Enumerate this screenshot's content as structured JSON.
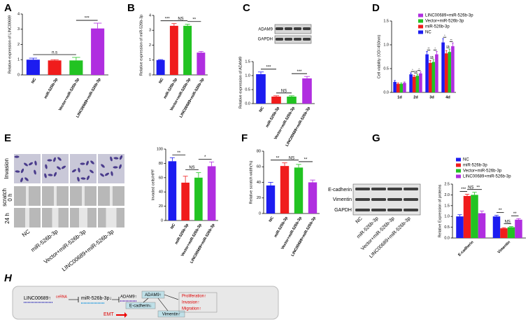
{
  "chart_data": [
    {
      "type": "bar",
      "panel": "A",
      "ylabel": "Relative expression of LINC00689",
      "categories": [
        "NC",
        "miR-526b-3p",
        "Vector+miR-526b-3p",
        "LINC00689+miR-526b-3p"
      ],
      "values": [
        1.0,
        0.95,
        0.95,
        3.05
      ],
      "errors": [
        0.1,
        0.05,
        0.2,
        0.35
      ],
      "colors": [
        "#1c1cf0",
        "#f01c1c",
        "#22c322",
        "#b02ee0"
      ],
      "ylim": [
        0,
        4
      ],
      "yticks": [
        0,
        1,
        2,
        3,
        4
      ],
      "annotations": [
        "n.s",
        "***"
      ]
    },
    {
      "type": "bar",
      "panel": "B",
      "ylabel": "Relative expression of miR-526b-3p",
      "categories": [
        "NC",
        "miR-526b-3p",
        "Vector+miR-526b-3p",
        "LINC00689+miR-526b-3p"
      ],
      "values": [
        1.0,
        3.3,
        3.3,
        1.5
      ],
      "errors": [
        0.03,
        0.15,
        0.1,
        0.08
      ],
      "colors": [
        "#1c1cf0",
        "#f01c1c",
        "#22c322",
        "#b02ee0"
      ],
      "ylim": [
        0,
        4
      ],
      "yticks": [
        0,
        1,
        2,
        3,
        4
      ],
      "annotations": [
        "***",
        "NS",
        "**"
      ]
    },
    {
      "type": "bar",
      "panel": "C",
      "ylabel": "Relative expression of ADAM9",
      "categories": [
        "NC",
        "miR-526b-3p",
        "Vector+miR-526b-3p",
        "LINC00689+miR-526b-3p"
      ],
      "values": [
        1.05,
        0.25,
        0.25,
        0.9
      ],
      "errors": [
        0.08,
        0.03,
        0.03,
        0.07
      ],
      "colors": [
        "#1c1cf0",
        "#f01c1c",
        "#22c322",
        "#b02ee0"
      ],
      "ylim": [
        0,
        1.5
      ],
      "yticks": [
        {
          "value": 0,
          "label": "0.0"
        },
        0.5,
        {
          "value": 1,
          "label": "1.0"
        },
        1.5
      ],
      "annotations": [
        "***",
        "NS",
        "***"
      ]
    },
    {
      "type": "bar",
      "panel": "D",
      "ylabel": "Cell viability (OD=450nm)",
      "categories": [
        "1d",
        "2d",
        "3d",
        "4d"
      ],
      "series": [
        {
          "name": "NC",
          "color": "#1c1cf0",
          "values": [
            0.22,
            0.38,
            0.8,
            1.05
          ],
          "errors": [
            0.03,
            0.03,
            0.06,
            0.08
          ]
        },
        {
          "name": "miR-526b-3p",
          "color": "#f01c1c",
          "values": [
            0.18,
            0.33,
            0.62,
            0.82
          ],
          "errors": [
            0.02,
            0.03,
            0.05,
            0.06
          ]
        },
        {
          "name": "Vector+miR-526b-3p",
          "color": "#22c322",
          "values": [
            0.18,
            0.35,
            0.64,
            0.85
          ],
          "errors": [
            0.02,
            0.03,
            0.05,
            0.06
          ]
        },
        {
          "name": "LINC00689+miR-526b-3p",
          "color": "#b02ee0",
          "values": [
            0.2,
            0.4,
            0.8,
            0.97
          ],
          "errors": [
            0.02,
            0.03,
            0.06,
            0.07
          ]
        }
      ],
      "ylim": [
        0,
        1.5
      ],
      "yticks": [
        {
          "value": 0,
          "label": "0.0"
        },
        0.5,
        {
          "value": 1,
          "label": "1.0"
        },
        1.5
      ],
      "annotations": [
        "*",
        "ns",
        "*",
        "**",
        "ns",
        "*",
        "*",
        "ns",
        "**"
      ]
    },
    {
      "type": "bar",
      "panel": "E",
      "ylabel": "Invaded cells/HPF",
      "categories": [
        "NC",
        "miR-526b-3p",
        "Vector+miR-526b-3p",
        "LINC00689+miR-526b-3p"
      ],
      "values": [
        83,
        53,
        60,
        76
      ],
      "errors": [
        5,
        9,
        7,
        6
      ],
      "colors": [
        "#1c1cf0",
        "#f01c1c",
        "#22c322",
        "#b02ee0"
      ],
      "ylim": [
        0,
        100
      ],
      "yticks": [
        0,
        20,
        40,
        60,
        80,
        100
      ],
      "annotations": [
        "**",
        "NS",
        "*"
      ]
    },
    {
      "type": "bar",
      "panel": "F",
      "ylabel": "Relative scratch width(%)",
      "categories": [
        "NC",
        "miR-526b-3p",
        "Vector+miR-526b-3p",
        "LINC00689+miR-526b-3p"
      ],
      "values": [
        36,
        61,
        59,
        40
      ],
      "errors": [
        4,
        4,
        4,
        3
      ],
      "colors": [
        "#1c1cf0",
        "#f01c1c",
        "#22c322",
        "#b02ee0"
      ],
      "ylim": [
        0,
        80
      ],
      "yticks": [
        0,
        20,
        40,
        60,
        80
      ],
      "annotations": [
        "**",
        "NS",
        "**"
      ]
    },
    {
      "type": "bar",
      "panel": "G",
      "ylabel": "Relative Expression of proteins",
      "categories": [
        "E-cadherin",
        "Vimentin"
      ],
      "series": [
        {
          "name": "NC",
          "color": "#1c1cf0",
          "values": [
            1.0,
            1.0
          ],
          "errors": [
            0.08,
            0.05
          ]
        },
        {
          "name": "miR-526b-3p",
          "color": "#f01c1c",
          "values": [
            1.95,
            0.45
          ],
          "errors": [
            0.08,
            0.03
          ]
        },
        {
          "name": "Vector+miR-526b-3p",
          "color": "#22c322",
          "values": [
            2.0,
            0.5
          ],
          "errors": [
            0.12,
            0.03
          ]
        },
        {
          "name": "LINC00689+miR-526b-3p",
          "color": "#b02ee0",
          "values": [
            1.15,
            0.85
          ],
          "errors": [
            0.1,
            0.05
          ]
        }
      ],
      "ylim": [
        0,
        2.5
      ],
      "yticks": [
        {
          "value": 0,
          "label": "0.0"
        },
        0.5,
        {
          "value": 1,
          "label": "1.0"
        },
        1.5,
        {
          "value": 2,
          "label": "2.0"
        },
        2.5
      ],
      "annotations": [
        "***",
        "NS",
        "**",
        "**",
        "NS",
        "**"
      ]
    }
  ],
  "blot_c": {
    "labels": [
      "ADAM9",
      "GAPDH"
    ]
  },
  "images_e": {
    "row_labels": [
      "Invasion",
      "scratch",
      "0 h",
      "24 h"
    ],
    "columns": [
      "NC",
      "miR-526b-3p",
      "Vector+miR-526b-3p",
      "LINC00689+miR-526b-3p"
    ]
  },
  "blot_g": {
    "labels": [
      "E-cadherin",
      "Vimentin",
      "GAPDH"
    ],
    "columns": [
      "NC",
      "miR-526b-3p",
      "Vector+miR-526b-3p",
      "LINC00689+miR-526b-3p"
    ]
  },
  "diagram_h": {
    "panel": "H",
    "lnc": "LINC00689↑",
    "cerna": "ceRNA",
    "mir": "miR-526b-3p↓",
    "adam": "ADAM9↑",
    "adam_box": "ADAM9↑",
    "ecad": "E-cadherin↓",
    "vim": "Vimentin↑",
    "outcomes": [
      "Proliferation↑",
      "Invasion↑",
      "Migration↑"
    ],
    "emt": "EMT"
  }
}
